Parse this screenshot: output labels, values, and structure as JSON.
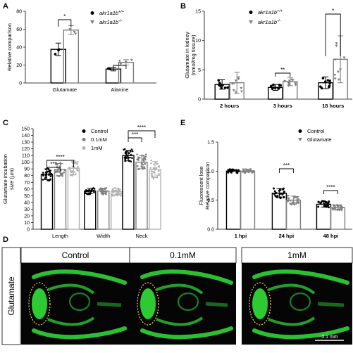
{
  "colors": {
    "black": "#000000",
    "grey": "#7f7f7f",
    "lightgrey": "#b3b3b3",
    "green": "#32e03a",
    "ellipse": "#f2e03c"
  },
  "chart_data": [
    {
      "panel": "A",
      "type": "bar",
      "ylabel": "Relative comparison",
      "ylim": [
        0,
        80
      ],
      "yticks": [
        "0",
        "20",
        "40",
        "60",
        "80"
      ],
      "categories": [
        "Glutamate",
        "Alanine"
      ],
      "series": [
        {
          "name": "akr1a1b+/+",
          "values": [
            37.5,
            15.5
          ],
          "errors": [
            7,
            2
          ]
        },
        {
          "name": "akr1a1b-/-",
          "values": [
            59,
            23
          ],
          "errors": [
            5,
            3
          ]
        }
      ],
      "legend": [
        {
          "base": "akr1a1b",
          "sup": "+/+"
        },
        {
          "base": "akr1a1b",
          "sup": "-/-"
        }
      ],
      "significance": [
        "*",
        "*"
      ]
    },
    {
      "panel": "B",
      "type": "bar",
      "ylabel": [
        "Glutamate in kidney",
        "(nmol/mg tissure)"
      ],
      "ylim": [
        0,
        15
      ],
      "yticks": [
        "0",
        "5",
        "10",
        "15"
      ],
      "categories": [
        "2 hours",
        "3 hours",
        "18 hours"
      ],
      "series": [
        {
          "name": "akr1a1b+/+",
          "values": [
            2.5,
            2.0,
            2.8
          ],
          "errors": [
            0.8,
            0.5,
            1.0
          ]
        },
        {
          "name": "akr1a1b-/-",
          "values": [
            2.8,
            3.0,
            6.8
          ],
          "errors": [
            1.8,
            0.7,
            4.0
          ]
        }
      ],
      "legend": [
        {
          "base": "akr1a1b",
          "sup": "+/+"
        },
        {
          "base": "akr1a1b",
          "sup": "-/-"
        }
      ],
      "significance": [
        "",
        "**",
        "*"
      ]
    },
    {
      "panel": "C",
      "type": "bar",
      "ylabel": [
        "Glutamate incubation",
        "size (μm)"
      ],
      "ylim": [
        0,
        150
      ],
      "yticks": [
        "0",
        "10",
        "20",
        "30",
        "40",
        "50",
        "60",
        "70",
        "80",
        "90",
        "100",
        "110",
        "120",
        "130",
        "140",
        "150"
      ],
      "categories": [
        "Length",
        "Width",
        "Neck"
      ],
      "series": [
        {
          "name": "Control",
          "values": [
            82,
            57,
            110
          ],
          "errors": [
            8,
            4,
            8
          ]
        },
        {
          "name": "0.1mM",
          "values": [
            89,
            57,
            100
          ],
          "errors": [
            9,
            4,
            10
          ]
        },
        {
          "name": "1mM",
          "values": [
            91,
            56,
            89
          ],
          "errors": [
            10,
            5,
            12
          ]
        }
      ],
      "legend": [
        {
          "base": "Control"
        },
        {
          "base": "0.1mM"
        },
        {
          "base": "1mM"
        }
      ],
      "significance": [
        "***",
        "****",
        "***",
        "****"
      ]
    },
    {
      "panel": "E",
      "type": "bar",
      "ylabel": [
        "Fluorescent lose",
        "Relative comparison"
      ],
      "ylim": [
        0,
        1.5
      ],
      "yticks": [
        "0.0",
        "0.5",
        "1.0",
        "1.5"
      ],
      "categories": [
        "1 hpi",
        "24 hpi",
        "48 hpi"
      ],
      "series": [
        {
          "name": "Control",
          "values": [
            1.0,
            0.62,
            0.43
          ],
          "errors": [
            0,
            0.08,
            0.05
          ]
        },
        {
          "name": "Glutamate",
          "values": [
            1.0,
            0.5,
            0.37
          ],
          "errors": [
            0,
            0.07,
            0.04
          ]
        }
      ],
      "legend": [
        {
          "base": "Control"
        },
        {
          "base": "Glutamate"
        }
      ],
      "significance": [
        "***",
        "****"
      ]
    }
  ],
  "panel_labels": {
    "a": "A",
    "b": "B",
    "c": "C",
    "d": "D",
    "e": "E"
  },
  "imaging": {
    "row_label": "Glutamate",
    "titles": [
      "Control",
      "0.1mM",
      "1mM"
    ],
    "scalebar": "0.1 mm"
  }
}
